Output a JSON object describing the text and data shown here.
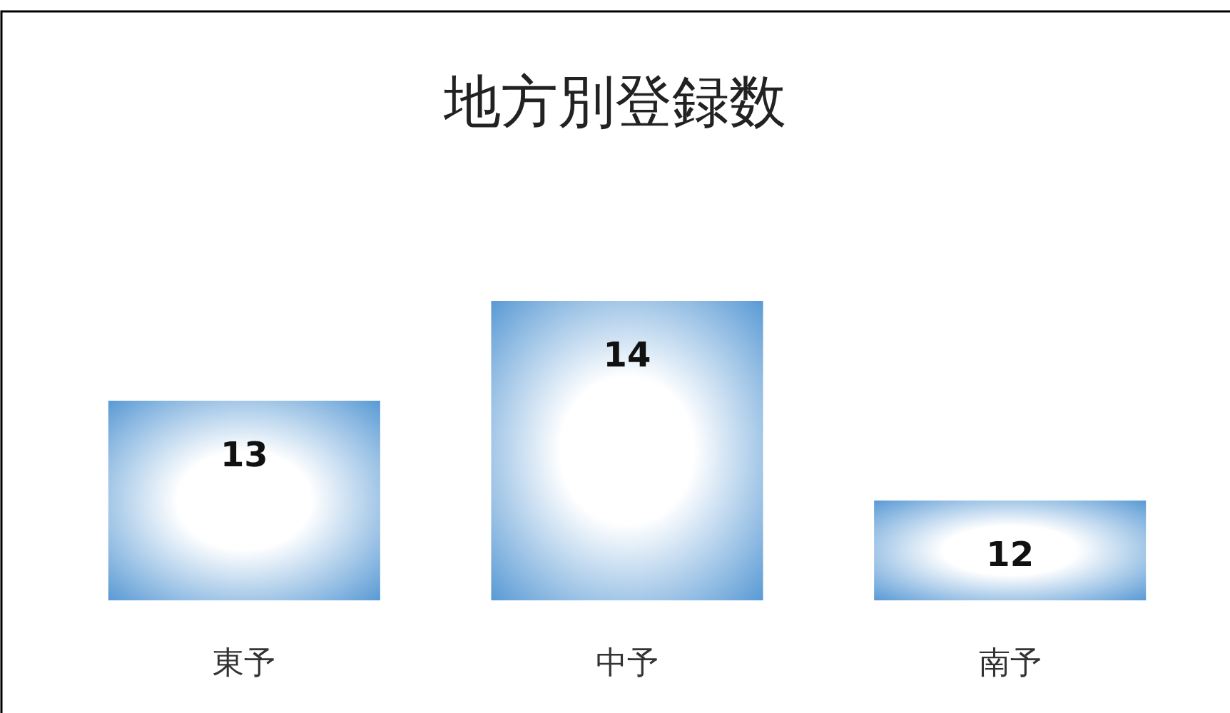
{
  "chart_data": {
    "type": "bar",
    "title": "地方別登録数",
    "categories": [
      "東予",
      "中予",
      "南予"
    ],
    "values": [
      13,
      14,
      12
    ],
    "color": "#5b9bd5",
    "ylim": [
      11,
      14
    ],
    "tick_labels": "x",
    "data_labels": true
  }
}
